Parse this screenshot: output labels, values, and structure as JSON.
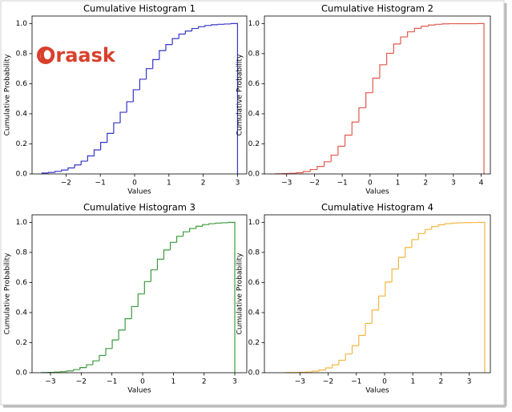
{
  "watermark": "Oraask",
  "chart_data": [
    {
      "type": "histogram",
      "title": "Cumulative Histogram 1",
      "xlabel": "Values",
      "ylabel": "Cumulative Probability",
      "color": "#3535c8",
      "bins": [
        -2.7,
        -2.51,
        -2.32,
        -2.13,
        -1.94,
        -1.75,
        -1.56,
        -1.37,
        -1.18,
        -0.99,
        -0.8,
        -0.61,
        -0.42,
        -0.23,
        -0.04,
        0.15,
        0.34,
        0.53,
        0.72,
        0.91,
        1.1,
        1.29,
        1.48,
        1.67,
        1.86,
        2.05,
        2.24,
        2.43,
        2.62,
        2.81,
        3.0
      ],
      "values": [
        0.006,
        0.01,
        0.017,
        0.026,
        0.04,
        0.06,
        0.085,
        0.12,
        0.16,
        0.21,
        0.27,
        0.34,
        0.41,
        0.48,
        0.56,
        0.63,
        0.7,
        0.76,
        0.82,
        0.86,
        0.9,
        0.93,
        0.95,
        0.967,
        0.979,
        0.987,
        0.992,
        0.995,
        0.997,
        1.0
      ],
      "xlim": [
        -2.99,
        3.27
      ],
      "ylim": [
        0,
        1.05
      ],
      "xticks": [
        {
          "value": -2,
          "label": "−2"
        },
        {
          "value": -1,
          "label": "−1"
        },
        0,
        1,
        2,
        3
      ],
      "yticks": [
        {
          "value": 0,
          "label": "0.0"
        },
        {
          "value": 0.2,
          "label": "0.2"
        },
        {
          "value": 0.4,
          "label": "0.4"
        },
        {
          "value": 0.6,
          "label": "0.6"
        },
        {
          "value": 0.8,
          "label": "0.8"
        },
        {
          "value": 1,
          "label": "1.0"
        }
      ]
    },
    {
      "type": "histogram",
      "title": "Cumulative Histogram 2",
      "xlabel": "Values",
      "ylabel": "Cumulative Probability",
      "color": "#e05a4c",
      "bins": [
        -3.4,
        -3.15,
        -2.9,
        -2.65,
        -2.4,
        -2.15,
        -1.9,
        -1.65,
        -1.4,
        -1.15,
        -0.9,
        -0.65,
        -0.4,
        -0.15,
        0.1,
        0.35,
        0.6,
        0.85,
        1.1,
        1.35,
        1.6,
        1.85,
        2.1,
        2.35,
        2.6,
        2.85,
        3.1,
        3.35,
        3.6,
        3.85,
        4.1
      ],
      "values": [
        0.001,
        0.002,
        0.004,
        0.008,
        0.016,
        0.029,
        0.05,
        0.081,
        0.125,
        0.184,
        0.258,
        0.345,
        0.44,
        0.54,
        0.637,
        0.726,
        0.802,
        0.864,
        0.911,
        0.945,
        0.968,
        0.982,
        0.99,
        0.995,
        0.998,
        0.999,
        0.999,
        0.999,
        0.999,
        1.0
      ],
      "xlim": [
        -3.8,
        4.33
      ],
      "ylim": [
        0,
        1.05
      ],
      "xticks": [
        {
          "value": -3,
          "label": "−3"
        },
        {
          "value": -2,
          "label": "−2"
        },
        {
          "value": -1,
          "label": "−1"
        },
        0,
        1,
        2,
        3,
        4
      ],
      "yticks": [
        {
          "value": 0,
          "label": "0.0"
        },
        {
          "value": 0.2,
          "label": "0.2"
        },
        {
          "value": 0.4,
          "label": "0.4"
        },
        {
          "value": 0.6,
          "label": "0.6"
        },
        {
          "value": 0.8,
          "label": "0.8"
        },
        {
          "value": 1,
          "label": "1.0"
        }
      ]
    },
    {
      "type": "histogram",
      "title": "Cumulative Histogram 3",
      "xlabel": "Values",
      "ylabel": "Cumulative Probability",
      "color": "#3d9a3d",
      "bins": [
        -3.3,
        -3.09,
        -2.88,
        -2.67,
        -2.46,
        -2.25,
        -2.04,
        -1.83,
        -1.62,
        -1.41,
        -1.2,
        -0.99,
        -0.78,
        -0.57,
        -0.36,
        -0.15,
        0.06,
        0.27,
        0.48,
        0.69,
        0.9,
        1.11,
        1.32,
        1.53,
        1.74,
        1.95,
        2.16,
        2.37,
        2.58,
        2.79,
        3.0
      ],
      "values": [
        0.001,
        0.002,
        0.004,
        0.007,
        0.012,
        0.021,
        0.034,
        0.053,
        0.079,
        0.115,
        0.161,
        0.218,
        0.284,
        0.359,
        0.44,
        0.524,
        0.606,
        0.684,
        0.755,
        0.816,
        0.867,
        0.907,
        0.937,
        0.959,
        0.974,
        0.985,
        0.991,
        0.995,
        0.997,
        1.0
      ],
      "xlim": [
        -3.6,
        3.39
      ],
      "ylim": [
        0,
        1.05
      ],
      "xticks": [
        {
          "value": -3,
          "label": "−3"
        },
        {
          "value": -2,
          "label": "−2"
        },
        {
          "value": -1,
          "label": "−1"
        },
        0,
        1,
        2,
        3
      ],
      "yticks": [
        {
          "value": 0,
          "label": "0.0"
        },
        {
          "value": 0.2,
          "label": "0.2"
        },
        {
          "value": 0.4,
          "label": "0.4"
        },
        {
          "value": 0.6,
          "label": "0.6"
        },
        {
          "value": 0.8,
          "label": "0.8"
        },
        {
          "value": 1,
          "label": "1.0"
        }
      ]
    },
    {
      "type": "histogram",
      "title": "Cumulative Histogram 4",
      "xlabel": "Values",
      "ylabel": "Cumulative Probability",
      "color": "#f2b640",
      "bins": [
        -3.5,
        -3.265,
        -3.03,
        -2.795,
        -2.56,
        -2.325,
        -2.09,
        -1.855,
        -1.62,
        -1.385,
        -1.15,
        -0.915,
        -0.68,
        -0.445,
        -0.21,
        0.025,
        0.26,
        0.495,
        0.73,
        0.965,
        1.2,
        1.435,
        1.67,
        1.905,
        2.14,
        2.375,
        2.61,
        2.845,
        3.08,
        3.315,
        3.55
      ],
      "values": [
        0.001,
        0.001,
        0.003,
        0.005,
        0.01,
        0.018,
        0.032,
        0.053,
        0.083,
        0.125,
        0.18,
        0.248,
        0.328,
        0.417,
        0.51,
        0.603,
        0.69,
        0.767,
        0.833,
        0.885,
        0.925,
        0.953,
        0.972,
        0.984,
        0.991,
        0.995,
        0.997,
        0.998,
        0.999,
        1.0
      ],
      "xlim": [
        -4.26,
        3.75
      ],
      "ylim": [
        0,
        1.05
      ],
      "xticks": [
        {
          "value": -3,
          "label": "−3"
        },
        {
          "value": -2,
          "label": "−2"
        },
        {
          "value": -1,
          "label": "−1"
        },
        0,
        1,
        2,
        3
      ],
      "yticks": [
        {
          "value": 0,
          "label": "0.0"
        },
        {
          "value": 0.2,
          "label": "0.2"
        },
        {
          "value": 0.4,
          "label": "0.4"
        },
        {
          "value": 0.6,
          "label": "0.6"
        },
        {
          "value": 0.8,
          "label": "0.8"
        },
        {
          "value": 1,
          "label": "1.0"
        }
      ]
    }
  ]
}
